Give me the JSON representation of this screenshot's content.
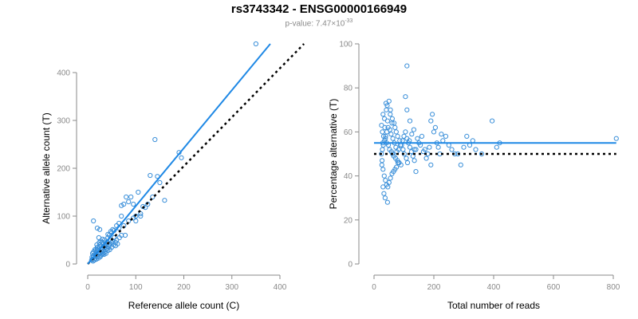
{
  "title": "rs3743342 - ENSG00000166949",
  "subtitle": {
    "prefix": "p-value: 7.47×10",
    "exponent": "-33"
  },
  "colors": {
    "points": "#3a8fd9",
    "fit_line": "#1e88e5",
    "reference_line": "#000000",
    "axis": "#8a8a8a"
  },
  "chart_data": [
    {
      "type": "scatter",
      "title": "",
      "xlabel": "Reference allele count (C)",
      "ylabel": "Alternative allele count (T)",
      "xlim": [
        -5,
        460
      ],
      "ylim": [
        -5,
        465
      ],
      "xticks": [
        0,
        100,
        200,
        300,
        400
      ],
      "yticks": [
        0,
        100,
        200,
        300,
        400
      ],
      "grid": false,
      "fit_line": [
        [
          0,
          0
        ],
        [
          380,
          460
        ]
      ],
      "reference_line": [
        [
          0,
          0
        ],
        [
          450,
          460
        ]
      ],
      "points": [
        [
          350,
          460
        ],
        [
          140,
          260
        ],
        [
          190,
          233
        ],
        [
          195,
          222
        ],
        [
          130,
          185
        ],
        [
          145,
          183
        ],
        [
          150,
          170
        ],
        [
          160,
          133
        ],
        [
          135,
          140
        ],
        [
          120,
          118
        ],
        [
          110,
          105
        ],
        [
          105,
          150
        ],
        [
          95,
          125
        ],
        [
          80,
          140
        ],
        [
          90,
          140
        ],
        [
          85,
          130
        ],
        [
          75,
          125
        ],
        [
          70,
          122
        ],
        [
          60,
          80
        ],
        [
          65,
          85
        ],
        [
          70,
          100
        ],
        [
          95,
          96
        ],
        [
          100,
          100
        ],
        [
          110,
          100
        ],
        [
          115,
          120
        ],
        [
          125,
          125
        ],
        [
          100,
          90
        ],
        [
          85,
          90
        ],
        [
          75,
          80
        ],
        [
          78,
          60
        ],
        [
          65,
          75
        ],
        [
          12,
          90
        ],
        [
          20,
          75
        ],
        [
          25,
          72
        ],
        [
          55,
          70
        ],
        [
          50,
          65
        ],
        [
          45,
          60
        ],
        [
          42,
          55
        ],
        [
          35,
          50
        ],
        [
          40,
          45
        ],
        [
          30,
          45
        ],
        [
          25,
          40
        ],
        [
          20,
          35
        ],
        [
          15,
          30
        ],
        [
          18,
          25
        ],
        [
          22,
          20
        ],
        [
          28,
          18
        ],
        [
          32,
          22
        ],
        [
          38,
          30
        ],
        [
          45,
          40
        ],
        [
          50,
          45
        ],
        [
          35,
          38
        ],
        [
          28,
          32
        ],
        [
          12,
          15
        ],
        [
          15,
          12
        ],
        [
          10,
          10
        ],
        [
          8,
          8
        ],
        [
          20,
          15
        ],
        [
          25,
          25
        ],
        [
          30,
          30
        ],
        [
          35,
          35
        ],
        [
          40,
          40
        ],
        [
          48,
          50
        ],
        [
          52,
          48
        ],
        [
          55,
          55
        ],
        [
          58,
          45
        ],
        [
          60,
          50
        ],
        [
          15,
          20
        ],
        [
          18,
          18
        ],
        [
          22,
          28
        ],
        [
          26,
          22
        ],
        [
          30,
          20
        ],
        [
          33,
          28
        ],
        [
          36,
          25
        ],
        [
          40,
          32
        ],
        [
          44,
          36
        ],
        [
          12,
          25
        ],
        [
          16,
          28
        ],
        [
          20,
          30
        ],
        [
          24,
          35
        ],
        [
          28,
          38
        ],
        [
          32,
          42
        ],
        [
          36,
          46
        ],
        [
          14,
          8
        ],
        [
          18,
          10
        ],
        [
          22,
          12
        ],
        [
          26,
          15
        ],
        [
          30,
          25
        ],
        [
          34,
          20
        ],
        [
          38,
          22
        ],
        [
          42,
          28
        ],
        [
          46,
          30
        ],
        [
          50,
          35
        ],
        [
          54,
          40
        ],
        [
          58,
          38
        ],
        [
          62,
          42
        ],
        [
          66,
          55
        ],
        [
          70,
          60
        ],
        [
          12,
          18
        ],
        [
          10,
          22
        ],
        [
          9,
          14
        ],
        [
          11,
          6
        ],
        [
          24,
          45
        ],
        [
          27,
          48
        ],
        [
          31,
          52
        ],
        [
          19,
          40
        ],
        [
          23,
          55
        ],
        [
          42,
          62
        ],
        [
          48,
          68
        ],
        [
          52,
          72
        ]
      ]
    },
    {
      "type": "scatter",
      "title": "",
      "xlabel": "Total number of reads",
      "ylabel": "Percentage alternative (T)",
      "xlim": [
        -10,
        820
      ],
      "ylim": [
        -2,
        101
      ],
      "xticks": [
        0,
        200,
        400,
        600,
        800
      ],
      "yticks": [
        0,
        20,
        40,
        60,
        80,
        100
      ],
      "grid": false,
      "fit_line": [
        [
          0,
          55
        ],
        [
          810,
          55
        ]
      ],
      "reference_line": [
        [
          0,
          50
        ],
        [
          810,
          50
        ]
      ],
      "points": [
        [
          110,
          90
        ],
        [
          40,
          73
        ],
        [
          50,
          74
        ],
        [
          55,
          70
        ],
        [
          30,
          68
        ],
        [
          35,
          66
        ],
        [
          45,
          65
        ],
        [
          60,
          64
        ],
        [
          70,
          62
        ],
        [
          25,
          63
        ],
        [
          28,
          60
        ],
        [
          32,
          58
        ],
        [
          38,
          57
        ],
        [
          42,
          55
        ],
        [
          48,
          54
        ],
        [
          52,
          52
        ],
        [
          58,
          51
        ],
        [
          62,
          50
        ],
        [
          66,
          49
        ],
        [
          72,
          48
        ],
        [
          78,
          47
        ],
        [
          84,
          46
        ],
        [
          90,
          45
        ],
        [
          26,
          45
        ],
        [
          30,
          43
        ],
        [
          34,
          40
        ],
        [
          38,
          38
        ],
        [
          42,
          36
        ],
        [
          46,
          35
        ],
        [
          50,
          37
        ],
        [
          55,
          39
        ],
        [
          60,
          41
        ],
        [
          65,
          42
        ],
        [
          70,
          43
        ],
        [
          75,
          44
        ],
        [
          80,
          46
        ],
        [
          25,
          50
        ],
        [
          28,
          52
        ],
        [
          31,
          54
        ],
        [
          35,
          56
        ],
        [
          39,
          58
        ],
        [
          43,
          60
        ],
        [
          47,
          62
        ],
        [
          53,
          61
        ],
        [
          57,
          59
        ],
        [
          63,
          57
        ],
        [
          68,
          55
        ],
        [
          73,
          53
        ],
        [
          76,
          51
        ],
        [
          82,
          52
        ],
        [
          88,
          54
        ],
        [
          95,
          56
        ],
        [
          100,
          58
        ],
        [
          105,
          60
        ],
        [
          110,
          57
        ],
        [
          115,
          55
        ],
        [
          120,
          53
        ],
        [
          125,
          51
        ],
        [
          130,
          49
        ],
        [
          135,
          47
        ],
        [
          140,
          52
        ],
        [
          150,
          55
        ],
        [
          160,
          58
        ],
        [
          170,
          52
        ],
        [
          175,
          48
        ],
        [
          180,
          50
        ],
        [
          190,
          65
        ],
        [
          195,
          68
        ],
        [
          200,
          60
        ],
        [
          205,
          62
        ],
        [
          210,
          55
        ],
        [
          215,
          53
        ],
        [
          220,
          50
        ],
        [
          230,
          56
        ],
        [
          240,
          58
        ],
        [
          260,
          52
        ],
        [
          270,
          50
        ],
        [
          280,
          50
        ],
        [
          290,
          45
        ],
        [
          300,
          53
        ],
        [
          310,
          58
        ],
        [
          320,
          54
        ],
        [
          330,
          56
        ],
        [
          395,
          65
        ],
        [
          410,
          53
        ],
        [
          420,
          55
        ],
        [
          810,
          57
        ],
        [
          110,
          70
        ],
        [
          105,
          76
        ],
        [
          120,
          65
        ],
        [
          140,
          42
        ],
        [
          190,
          45
        ],
        [
          135,
          52
        ],
        [
          45,
          28
        ],
        [
          30,
          35
        ],
        [
          33,
          32
        ],
        [
          37,
          30
        ],
        [
          27,
          47
        ],
        [
          29,
          55
        ],
        [
          36,
          62
        ],
        [
          41,
          70
        ],
        [
          44,
          72
        ],
        [
          54,
          68
        ],
        [
          61,
          66
        ],
        [
          67,
          64
        ],
        [
          74,
          60
        ],
        [
          79,
          58
        ],
        [
          86,
          56
        ],
        [
          92,
          54
        ],
        [
          97,
          52
        ],
        [
          101,
          50
        ],
        [
          108,
          48
        ],
        [
          112,
          46
        ],
        [
          118,
          56
        ],
        [
          126,
          59
        ],
        [
          133,
          61
        ],
        [
          145,
          57
        ],
        [
          155,
          54
        ],
        [
          165,
          51
        ],
        [
          185,
          53
        ],
        [
          225,
          59
        ],
        [
          250,
          54
        ],
        [
          340,
          52
        ],
        [
          360,
          50
        ]
      ]
    }
  ]
}
